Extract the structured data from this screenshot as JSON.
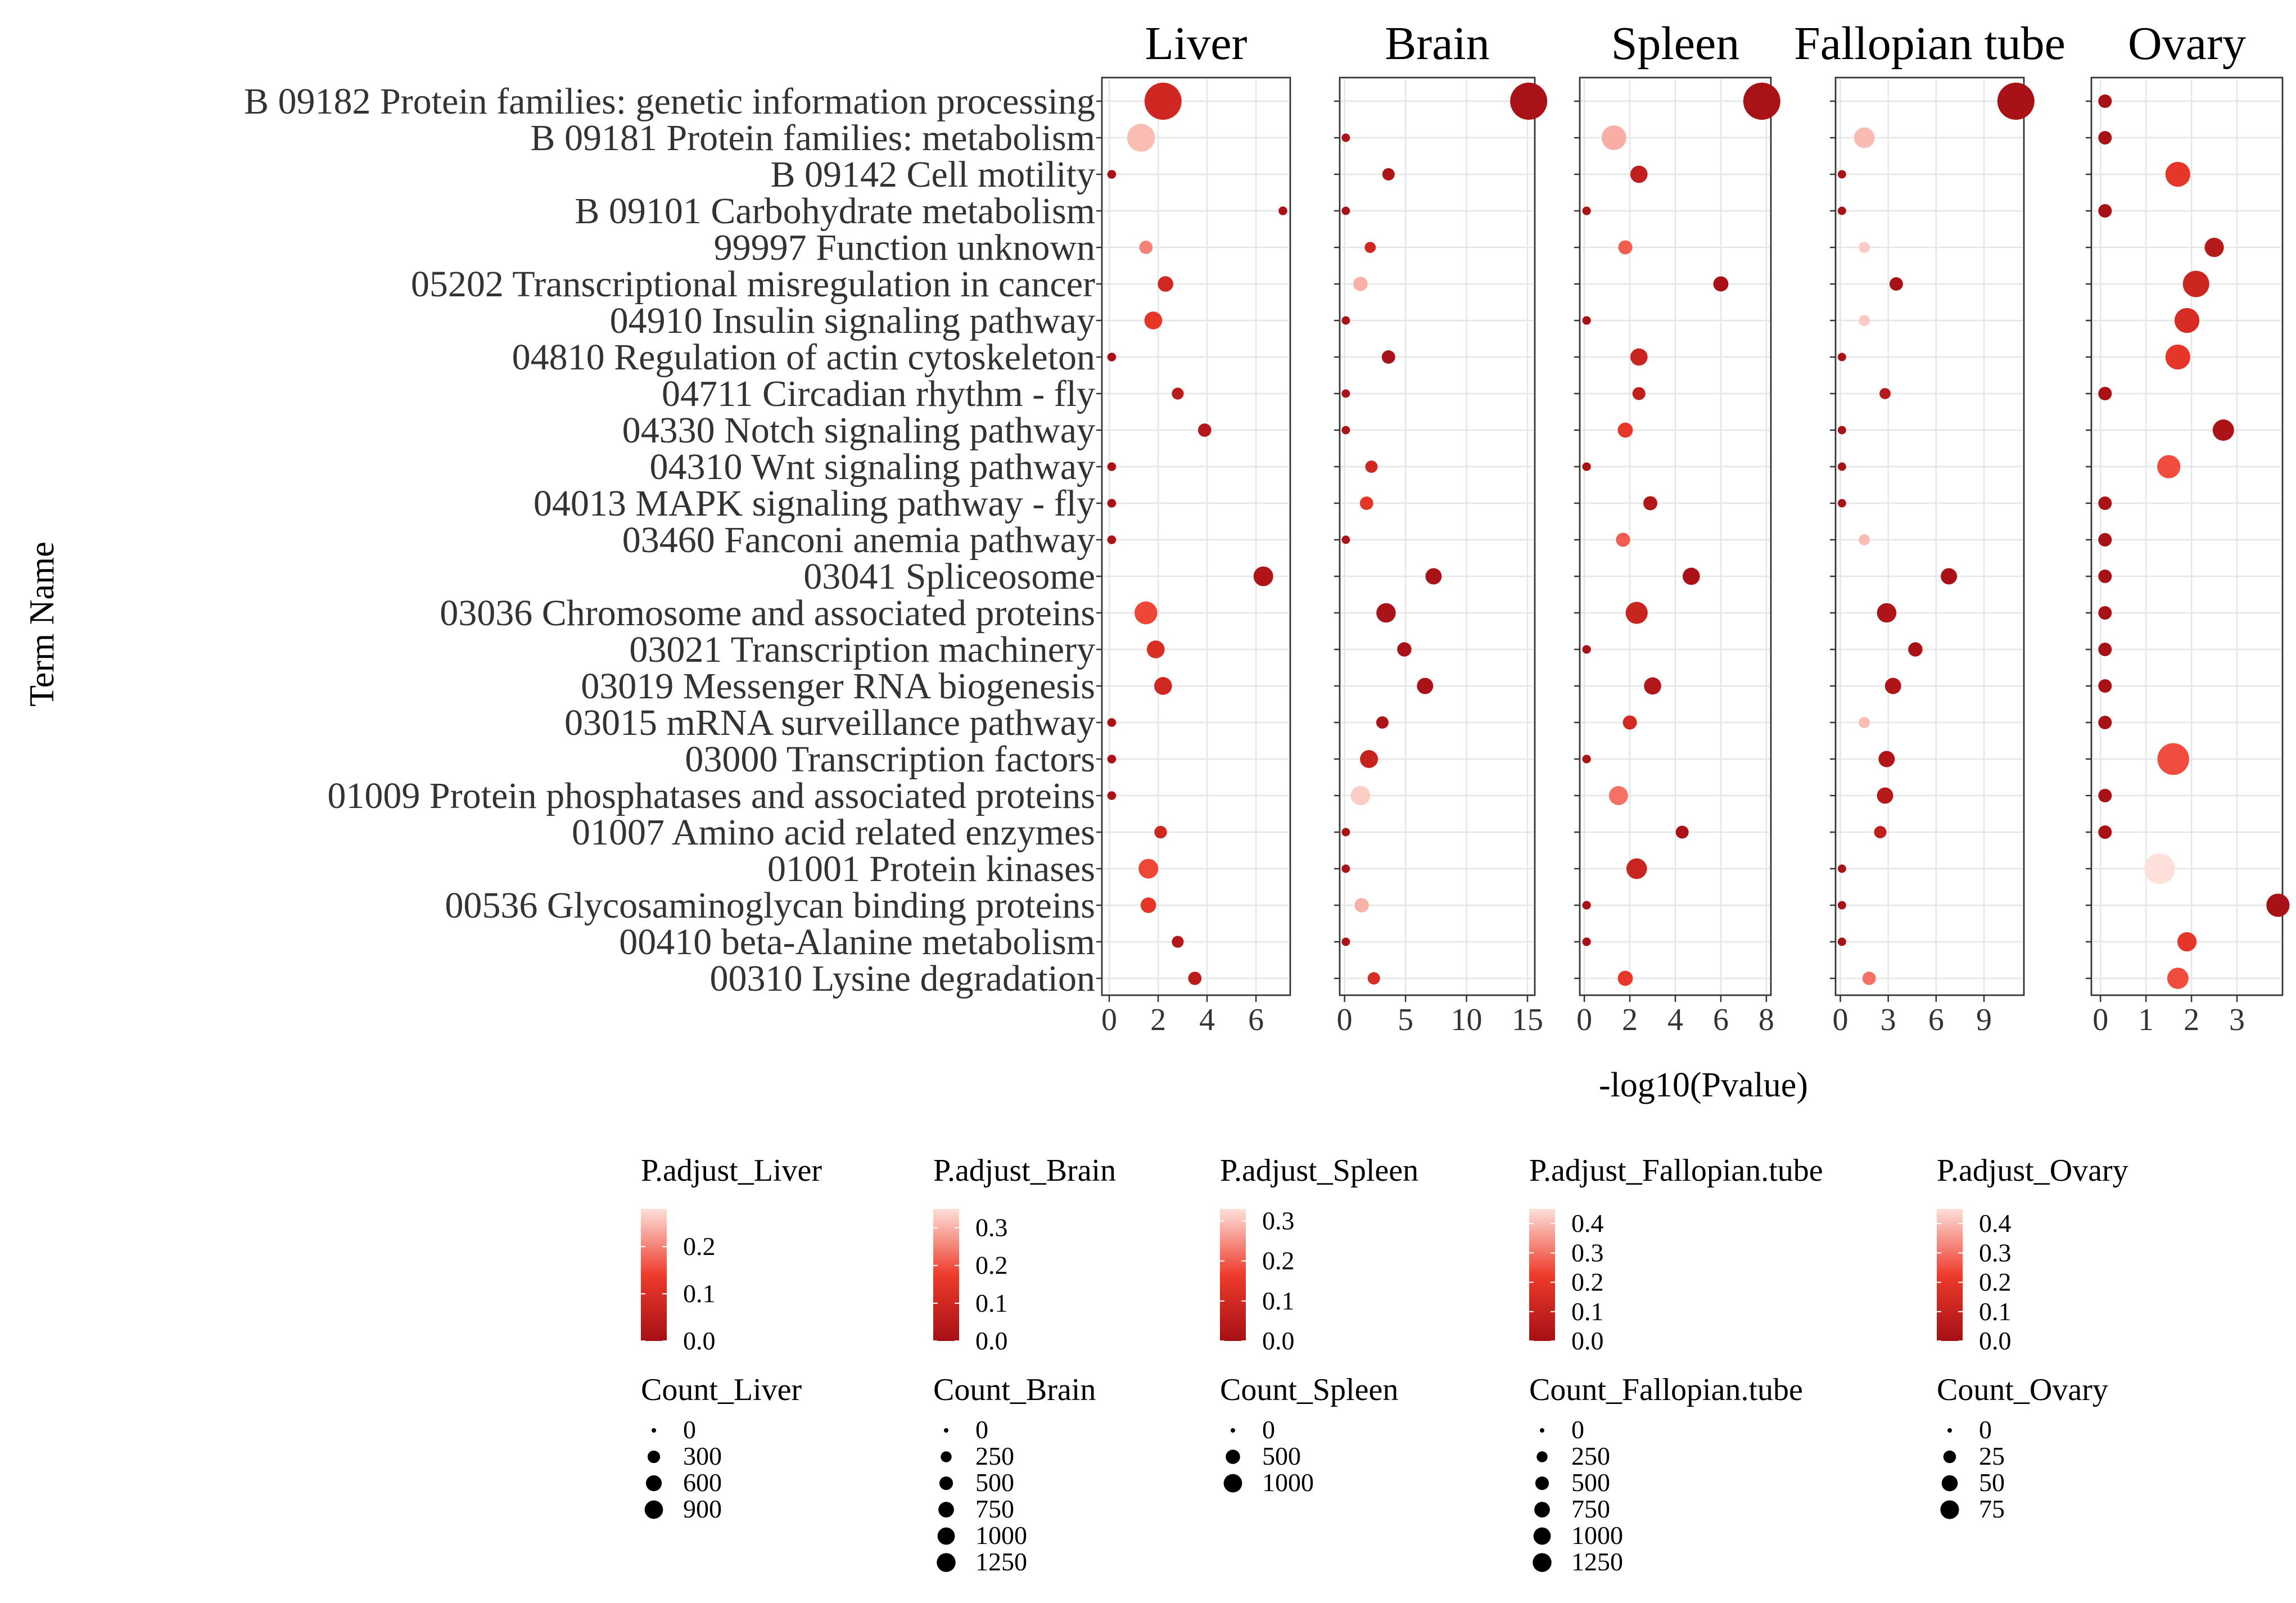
{
  "chart_data": {
    "type": "scatter",
    "subtype": "faceted bubble dot plot",
    "y_axis_title": "Term Name",
    "x_axis_title": "-log10(Pvalue)",
    "terms": [
      "B  09182 Protein families: genetic information processing",
      "B  09181 Protein families: metabolism",
      "B  09142 Cell motility",
      "B  09101 Carbohydrate metabolism",
      "99997 Function unknown",
      "05202 Transcriptional misregulation in cancer",
      "04910 Insulin signaling pathway",
      "04810 Regulation of actin cytoskeleton",
      "04711 Circadian rhythm - fly",
      "04330 Notch signaling pathway",
      "04310 Wnt signaling pathway",
      "04013 MAPK signaling pathway - fly",
      "03460 Fanconi anemia pathway",
      "03041 Spliceosome",
      "03036 Chromosome and associated proteins",
      "03021 Transcription machinery",
      "03019 Messenger RNA biogenesis",
      "03015 mRNA surveillance pathway",
      "03000 Transcription factors",
      "01009 Protein phosphatases and associated proteins",
      "01007 Amino acid related enzymes",
      "01001 Protein kinases",
      "00536 Glycosaminoglycan binding proteins",
      "00410 beta-Alanine metabolism",
      "00310 Lysine degradation"
    ],
    "color_scale": {
      "high_padj_color": "#fde0d9",
      "mid_color": "#ee3b2b",
      "low_padj_color": "#a50f15"
    },
    "panels": [
      {
        "name": "Liver",
        "xlim": [
          -0.3,
          7.4
        ],
        "xticks": [
          0,
          2,
          4,
          6
        ],
        "x": [
          2.2,
          1.3,
          0.1,
          7.1,
          1.5,
          2.3,
          1.8,
          0.1,
          2.8,
          3.9,
          0.1,
          0.1,
          0.1,
          6.3,
          1.5,
          1.9,
          2.2,
          0.1,
          0.1,
          0.1,
          2.1,
          1.6,
          1.6,
          2.8,
          3.5
        ],
        "count": [
          1000,
          500,
          10,
          10,
          60,
          100,
          150,
          10,
          40,
          60,
          10,
          10,
          10,
          200,
          300,
          150,
          150,
          10,
          10,
          10,
          50,
          200,
          100,
          40,
          60
        ],
        "padj": [
          0.08,
          0.25,
          0.01,
          0.01,
          0.2,
          0.08,
          0.12,
          0.01,
          0.04,
          0.03,
          0.01,
          0.01,
          0.01,
          0.02,
          0.15,
          0.1,
          0.08,
          0.01,
          0.01,
          0.01,
          0.08,
          0.15,
          0.12,
          0.03,
          0.04
        ],
        "legend": {
          "padj_title": "P.adjust_Liver",
          "padj_ticks": [
            "0.0",
            "0.1",
            "0.2"
          ],
          "padj_range": [
            0.0,
            0.28
          ],
          "count_title": "Count_Liver",
          "count_ticks": [
            "0",
            "300",
            "600",
            "900"
          ],
          "count_max": 1000
        }
      },
      {
        "name": "Brain",
        "xlim": [
          -0.4,
          15.6
        ],
        "xticks": [
          0,
          5,
          10,
          15
        ],
        "x": [
          15.1,
          0.1,
          3.6,
          0.1,
          2.1,
          1.3,
          0.1,
          3.6,
          0.1,
          0.1,
          2.2,
          1.8,
          0.1,
          7.3,
          3.4,
          4.9,
          6.6,
          3.1,
          2.0,
          1.3,
          0.1,
          0.1,
          1.4,
          0.1,
          2.4
        ],
        "count": [
          1300,
          10,
          60,
          10,
          40,
          100,
          10,
          80,
          10,
          10,
          60,
          80,
          10,
          150,
          250,
          100,
          150,
          60,
          200,
          250,
          10,
          10,
          100,
          10,
          60
        ],
        "padj": [
          0.01,
          0.01,
          0.02,
          0.01,
          0.1,
          0.3,
          0.01,
          0.01,
          0.01,
          0.01,
          0.1,
          0.15,
          0.01,
          0.01,
          0.01,
          0.01,
          0.01,
          0.02,
          0.08,
          0.33,
          0.01,
          0.01,
          0.3,
          0.01,
          0.12
        ],
        "legend": {
          "padj_title": "P.adjust_Brain",
          "padj_ticks": [
            "0.0",
            "0.1",
            "0.2",
            "0.3"
          ],
          "padj_range": [
            0.0,
            0.35
          ],
          "count_title": "Count_Brain",
          "count_ticks": [
            "0",
            "250",
            "500",
            "750",
            "1000",
            "1250"
          ],
          "count_max": 1300
        }
      },
      {
        "name": "Spleen",
        "xlim": [
          -0.2,
          8.2
        ],
        "xticks": [
          0,
          2,
          4,
          6,
          8
        ],
        "x": [
          7.8,
          1.3,
          2.4,
          0.1,
          1.8,
          6.0,
          0.1,
          2.4,
          2.4,
          1.8,
          0.1,
          2.9,
          1.7,
          4.7,
          2.3,
          0.1,
          3.0,
          2.0,
          0.1,
          1.5,
          4.3,
          2.3,
          0.1,
          0.1,
          1.8
        ],
        "count": [
          1100,
          400,
          150,
          10,
          80,
          100,
          10,
          150,
          60,
          100,
          10,
          80,
          80,
          150,
          300,
          10,
          150,
          80,
          10,
          200,
          60,
          250,
          10,
          10,
          100
        ],
        "padj": [
          0.01,
          0.28,
          0.06,
          0.01,
          0.2,
          0.01,
          0.01,
          0.08,
          0.06,
          0.15,
          0.01,
          0.03,
          0.2,
          0.01,
          0.08,
          0.01,
          0.03,
          0.1,
          0.01,
          0.22,
          0.01,
          0.08,
          0.01,
          0.01,
          0.15
        ],
        "legend": {
          "padj_title": "P.adjust_Spleen",
          "padj_ticks": [
            "0.0",
            "0.1",
            "0.2",
            "0.3"
          ],
          "padj_range": [
            0.0,
            0.33
          ],
          "count_title": "Count_Spleen",
          "count_ticks": [
            "0",
            "500",
            "1000"
          ],
          "count_max": 1100
        }
      },
      {
        "name": "Fallopian tube",
        "xlim": [
          -0.3,
          11.5
        ],
        "xticks": [
          0,
          3,
          6,
          9
        ],
        "x": [
          11.0,
          1.5,
          0.1,
          0.1,
          1.5,
          3.5,
          1.5,
          0.1,
          2.8,
          0.1,
          0.1,
          0.1,
          1.5,
          6.8,
          2.9,
          4.7,
          3.3,
          1.5,
          2.9,
          2.8,
          2.5,
          0.1,
          0.1,
          0.1,
          1.8
        ],
        "count": [
          1300,
          300,
          10,
          10,
          40,
          80,
          40,
          10,
          40,
          10,
          10,
          10,
          40,
          150,
          250,
          100,
          150,
          40,
          150,
          150,
          60,
          10,
          10,
          10,
          80
        ],
        "padj": [
          0.01,
          0.4,
          0.01,
          0.01,
          0.42,
          0.01,
          0.42,
          0.01,
          0.05,
          0.01,
          0.01,
          0.01,
          0.4,
          0.01,
          0.03,
          0.01,
          0.03,
          0.4,
          0.03,
          0.05,
          0.08,
          0.01,
          0.01,
          0.01,
          0.3
        ],
        "legend": {
          "padj_title": "P.adjust_Fallopian.tube",
          "padj_ticks": [
            "0.0",
            "0.1",
            "0.2",
            "0.3",
            "0.4"
          ],
          "padj_range": [
            0.0,
            0.45
          ],
          "count_title": "Count_Fallopian.tube",
          "count_ticks": [
            "0",
            "250",
            "500",
            "750",
            "1000",
            "1250"
          ],
          "count_max": 1300
        }
      },
      {
        "name": "Ovary",
        "xlim": [
          -0.2,
          4.0
        ],
        "xticks": [
          0,
          1,
          2,
          3
        ],
        "x": [
          0.1,
          0.1,
          1.7,
          0.1,
          2.5,
          2.1,
          1.9,
          1.7,
          0.1,
          2.7,
          1.5,
          0.1,
          0.1,
          0.1,
          0.1,
          0.1,
          0.1,
          0.1,
          1.6,
          0.1,
          0.1,
          1.3,
          3.9,
          1.9,
          1.7
        ],
        "count": [
          5,
          5,
          30,
          5,
          15,
          35,
          30,
          30,
          5,
          20,
          25,
          5,
          5,
          5,
          5,
          5,
          5,
          5,
          55,
          5,
          5,
          50,
          25,
          15,
          20
        ],
        "padj": [
          0.01,
          0.01,
          0.2,
          0.01,
          0.05,
          0.12,
          0.15,
          0.2,
          0.01,
          0.02,
          0.25,
          0.01,
          0.01,
          0.01,
          0.01,
          0.01,
          0.01,
          0.01,
          0.25,
          0.01,
          0.01,
          0.45,
          0.01,
          0.2,
          0.25
        ],
        "legend": {
          "padj_title": "P.adjust_Ovary",
          "padj_ticks": [
            "0.0",
            "0.1",
            "0.2",
            "0.3",
            "0.4"
          ],
          "padj_range": [
            0.0,
            0.45
          ],
          "count_title": "Count_Ovary",
          "count_ticks": [
            "0",
            "25",
            "50",
            "75"
          ],
          "count_max": 80
        }
      }
    ]
  }
}
